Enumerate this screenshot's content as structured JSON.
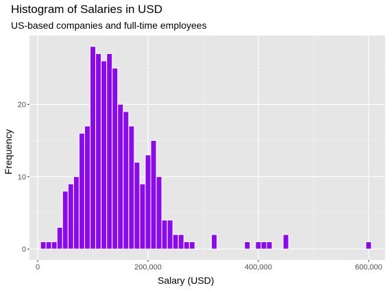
{
  "chart_data": {
    "type": "bar",
    "title": "Histogram of Salaries in USD",
    "subtitle": "US-based companies and full-time employees",
    "xlabel": "Salary (USD)",
    "ylabel": "Frequency",
    "bin_width": 10000,
    "xlim": [
      -15000,
      630000
    ],
    "ylim": [
      -1.5,
      29.5
    ],
    "x_ticks": [
      0,
      200000,
      400000,
      600000
    ],
    "x_tick_labels": [
      "0",
      "200,000",
      "400,000",
      "600,000"
    ],
    "y_ticks": [
      0,
      10,
      20
    ],
    "y_tick_labels": [
      "0",
      "10",
      "20"
    ],
    "grid": true,
    "legend": "none",
    "bar_color": "#8B0BE8",
    "bar_outline": "#ffffff",
    "panel_background": "#E6E6E6",
    "bin_centers": [
      10000,
      20000,
      30000,
      40000,
      50000,
      60000,
      70000,
      80000,
      90000,
      100000,
      110000,
      120000,
      130000,
      140000,
      150000,
      160000,
      170000,
      180000,
      190000,
      200000,
      210000,
      220000,
      230000,
      240000,
      250000,
      260000,
      270000,
      280000,
      320000,
      380000,
      400000,
      410000,
      420000,
      450000,
      600000
    ],
    "values": [
      1,
      1,
      1,
      3,
      8,
      9,
      10,
      16,
      17,
      28,
      27,
      26,
      27,
      25,
      20,
      19,
      17,
      12,
      9,
      13,
      15,
      10,
      4,
      4,
      2,
      2,
      1,
      1,
      2,
      1,
      1,
      1,
      1,
      2,
      1
    ]
  }
}
